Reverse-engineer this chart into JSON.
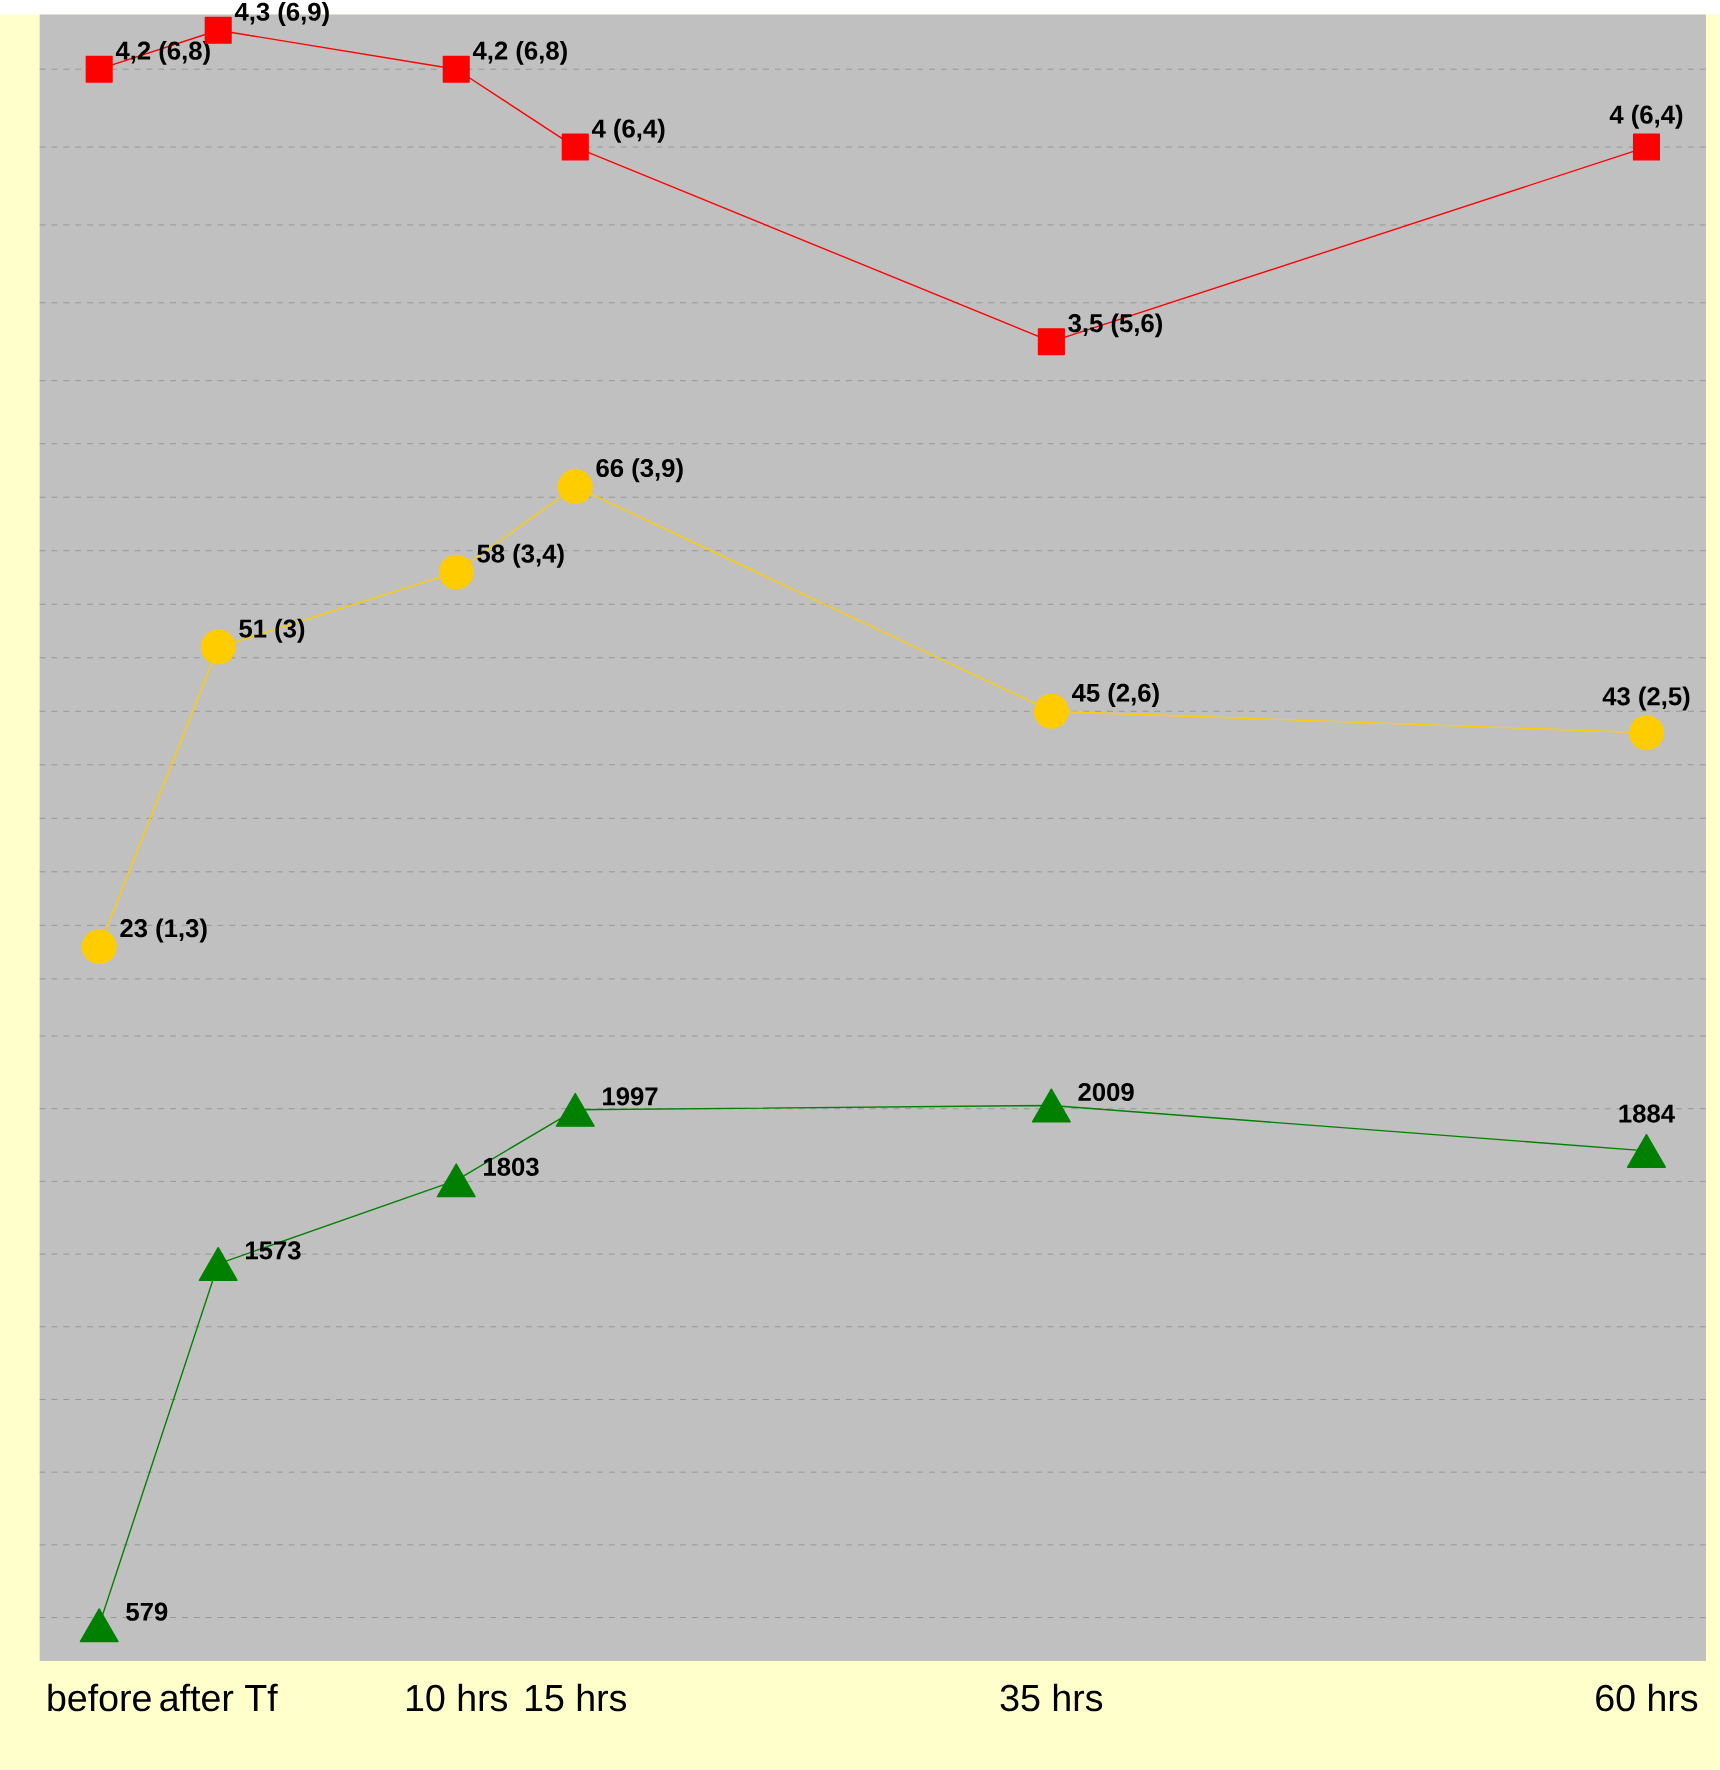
{
  "chart_data": [
    {
      "type": "line",
      "x": [
        -5,
        0,
        10,
        15,
        35,
        60
      ],
      "values": [
        4.2,
        4.3,
        4.2,
        4,
        3.5,
        4
      ],
      "value_labels": [
        "4,2 (6,8)",
        "4,3 (6,9)",
        "4,2 (6,8)",
        "4 (6,4)",
        "3,5 (5,6)",
        "4 (6,4)"
      ],
      "color": "#ff0000",
      "marker": "square",
      "xlim": [
        -7.5,
        62.5
      ],
      "grid": "y",
      "tick_labels": false
    },
    {
      "type": "line",
      "x": [
        -5,
        0,
        10,
        15,
        35,
        60
      ],
      "values": [
        23,
        51,
        58,
        66,
        45,
        43
      ],
      "value_labels": [
        "23 (1,3)",
        "51 (3)",
        "58 (3,4)",
        "66 (3,9)",
        "45 (2,6)",
        "43 (2,5)"
      ],
      "color": "#ffcc00",
      "marker": "circle",
      "xlim": [
        -7.5,
        62.5
      ],
      "grid": "y",
      "tick_labels": false
    },
    {
      "type": "line",
      "x": [
        -5,
        0,
        10,
        15,
        35,
        60
      ],
      "values": [
        579,
        1573,
        1803,
        1997,
        2009,
        1884
      ],
      "value_labels": [
        "579",
        "1573",
        "1803",
        "1997",
        "2009",
        "1884"
      ],
      "color": "#008000",
      "marker": "triangle",
      "xlim": [
        -7.5,
        62.5
      ],
      "xticks": [
        {
          "value": -5,
          "label": "before"
        },
        {
          "value": 0,
          "label": "after Tf"
        },
        {
          "value": 10,
          "label": "10 hrs"
        },
        {
          "value": 15,
          "label": "15 hrs"
        },
        {
          "value": 35,
          "label": "35 hrs"
        },
        {
          "value": 60,
          "label": "60 hrs"
        }
      ],
      "grid": "y",
      "tick_labels": "x"
    }
  ]
}
